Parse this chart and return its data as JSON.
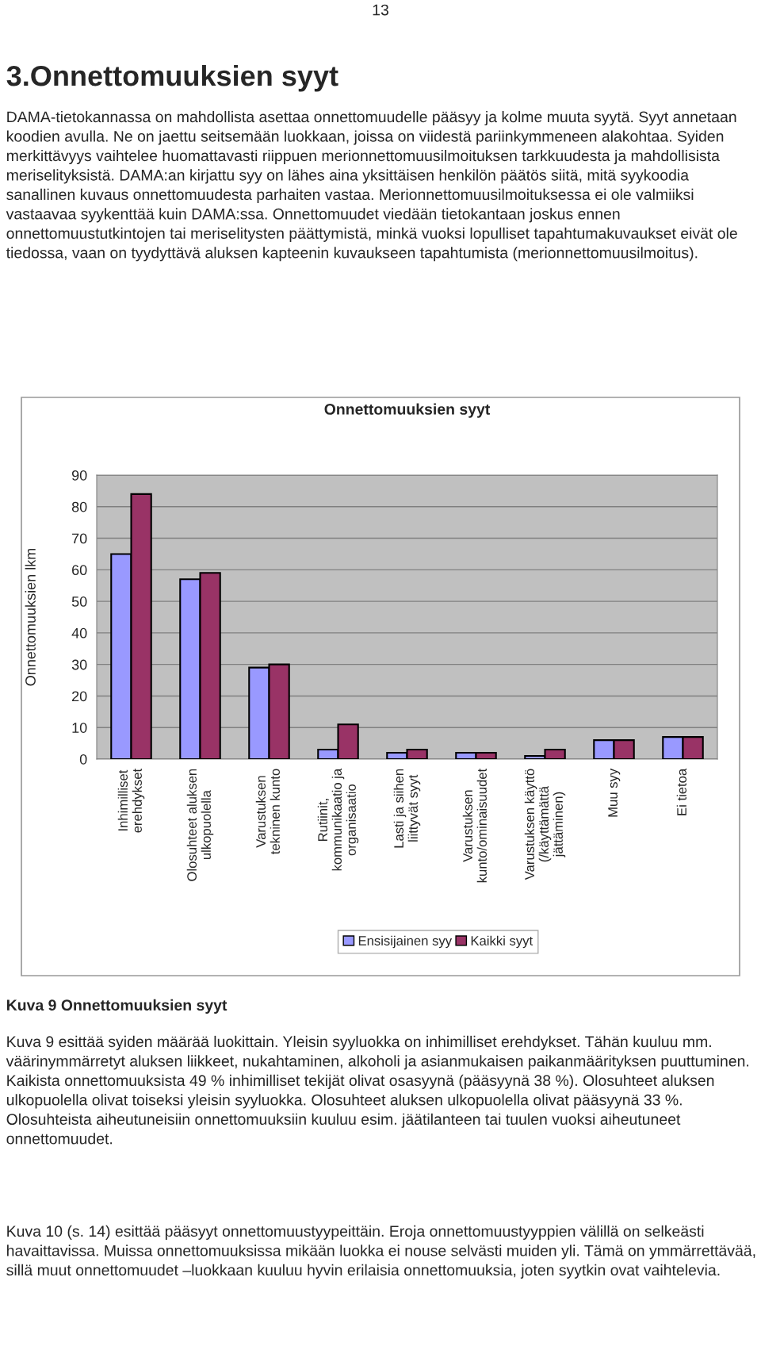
{
  "chart_data": {
    "type": "bar",
    "title": "Onnettomuuksien syyt",
    "ylabel": "Onnettomuuksien lkm",
    "categories": [
      "Inhimilliset\nerehdykset",
      "Olosuhteet aluksen\nulkopuolella",
      "Varustuksen\ntekninen kunto",
      "Rutiinit,\nkommunikaatio ja\norganisaatio",
      "Lasti ja siihen\nliittyvät syyt",
      "Varustuksen\nkunto/ominaisuudet",
      "Varustuksen käyttö\n(/käyttämättä\njättäminen)",
      "Muu syy",
      "Ei tietoa"
    ],
    "series": [
      {
        "name": "Ensisijainen syy",
        "color": "#9999ff",
        "values": [
          65,
          57,
          29,
          3,
          2,
          2,
          1,
          6,
          7
        ]
      },
      {
        "name": "Kaikki syyt",
        "color": "#993366",
        "values": [
          84,
          59,
          30,
          11,
          3,
          2,
          3,
          6,
          7
        ]
      }
    ],
    "ylim": [
      0,
      90
    ],
    "yticks": [
      0,
      10,
      20,
      30,
      40,
      50,
      60,
      70,
      80,
      90
    ],
    "grid": "y",
    "legend": "bottom",
    "annotations": [
      "13",
      "3.Onnettomuuksien syyt",
      "DAMA-tietokannassa on mahdollista asettaa onnettomuudelle pääsyy ja kolme muuta syytä. Syyt annetaan koodien avulla. Ne on jaettu seitsemään luokkaan, joissa on viidestä pariinkymmeneen alakohtaa. Syiden merkittävyys vaihtelee huomattavasti riippuen merionnettomuusilmoituksen tarkkuudesta ja mahdollisista meriselityksistä. DAMA:an kirjattu syy on lähes aina yksittäisen henkilön päätös siitä, mitä syykoodia sanallinen kuvaus onnettomuudesta parhaiten vastaa. Merionnettomuusilmoituksessa ei ole valmiiksi vastaavaa syykenttää kuin DAMA:ssa. Onnettomuudet viedään tietokantaan joskus ennen onnettomuustutkintojen tai meriselitysten päättymistä, minkä vuoksi lopulliset tapahtumakuvaukset eivät ole tiedossa, vaan on tyydyttävä aluksen kapteenin kuvaukseen tapahtumista (merionnettomuusilmoitus).",
      "Kuva 9 Onnettomuuksien syyt",
      "Kuva 9 esittää syiden määrää luokittain. Yleisin syyluokka on inhimilliset erehdykset. Tähän kuuluu mm. väärinymmärretyt aluksen liikkeet, nukahtaminen, alkoholi ja asianmukaisen paikanmäärityksen puuttuminen. Kaikista onnettomuuksista 49 % inhimilliset tekijät olivat osasyynä (pääsyynä 38 %). Olosuhteet aluksen ulkopuolella olivat toiseksi yleisin syyluokka. Olosuhteet aluksen ulkopuolella olivat pääsyynä 33 %. Olosuhteista aiheutuneisiin onnettomuuksiin kuuluu esim. jäätilanteen tai tuulen vuoksi aiheutuneet onnettomuudet.",
      "Kuva 10 (s. 14) esittää pääsyyt onnettomuustyypeittäin. Eroja onnettomuustyyppien välillä on selkeästi havaittavissa. Muissa onnettomuuksissa mikään luokka ei nouse selvästi muiden yli. Tämä on ymmärrettävää, sillä muut onnettomuudet –luokkaan kuuluu hyvin erilaisia onnettomuuksia, joten syytkin ovat vaihtelevia."
    ]
  }
}
